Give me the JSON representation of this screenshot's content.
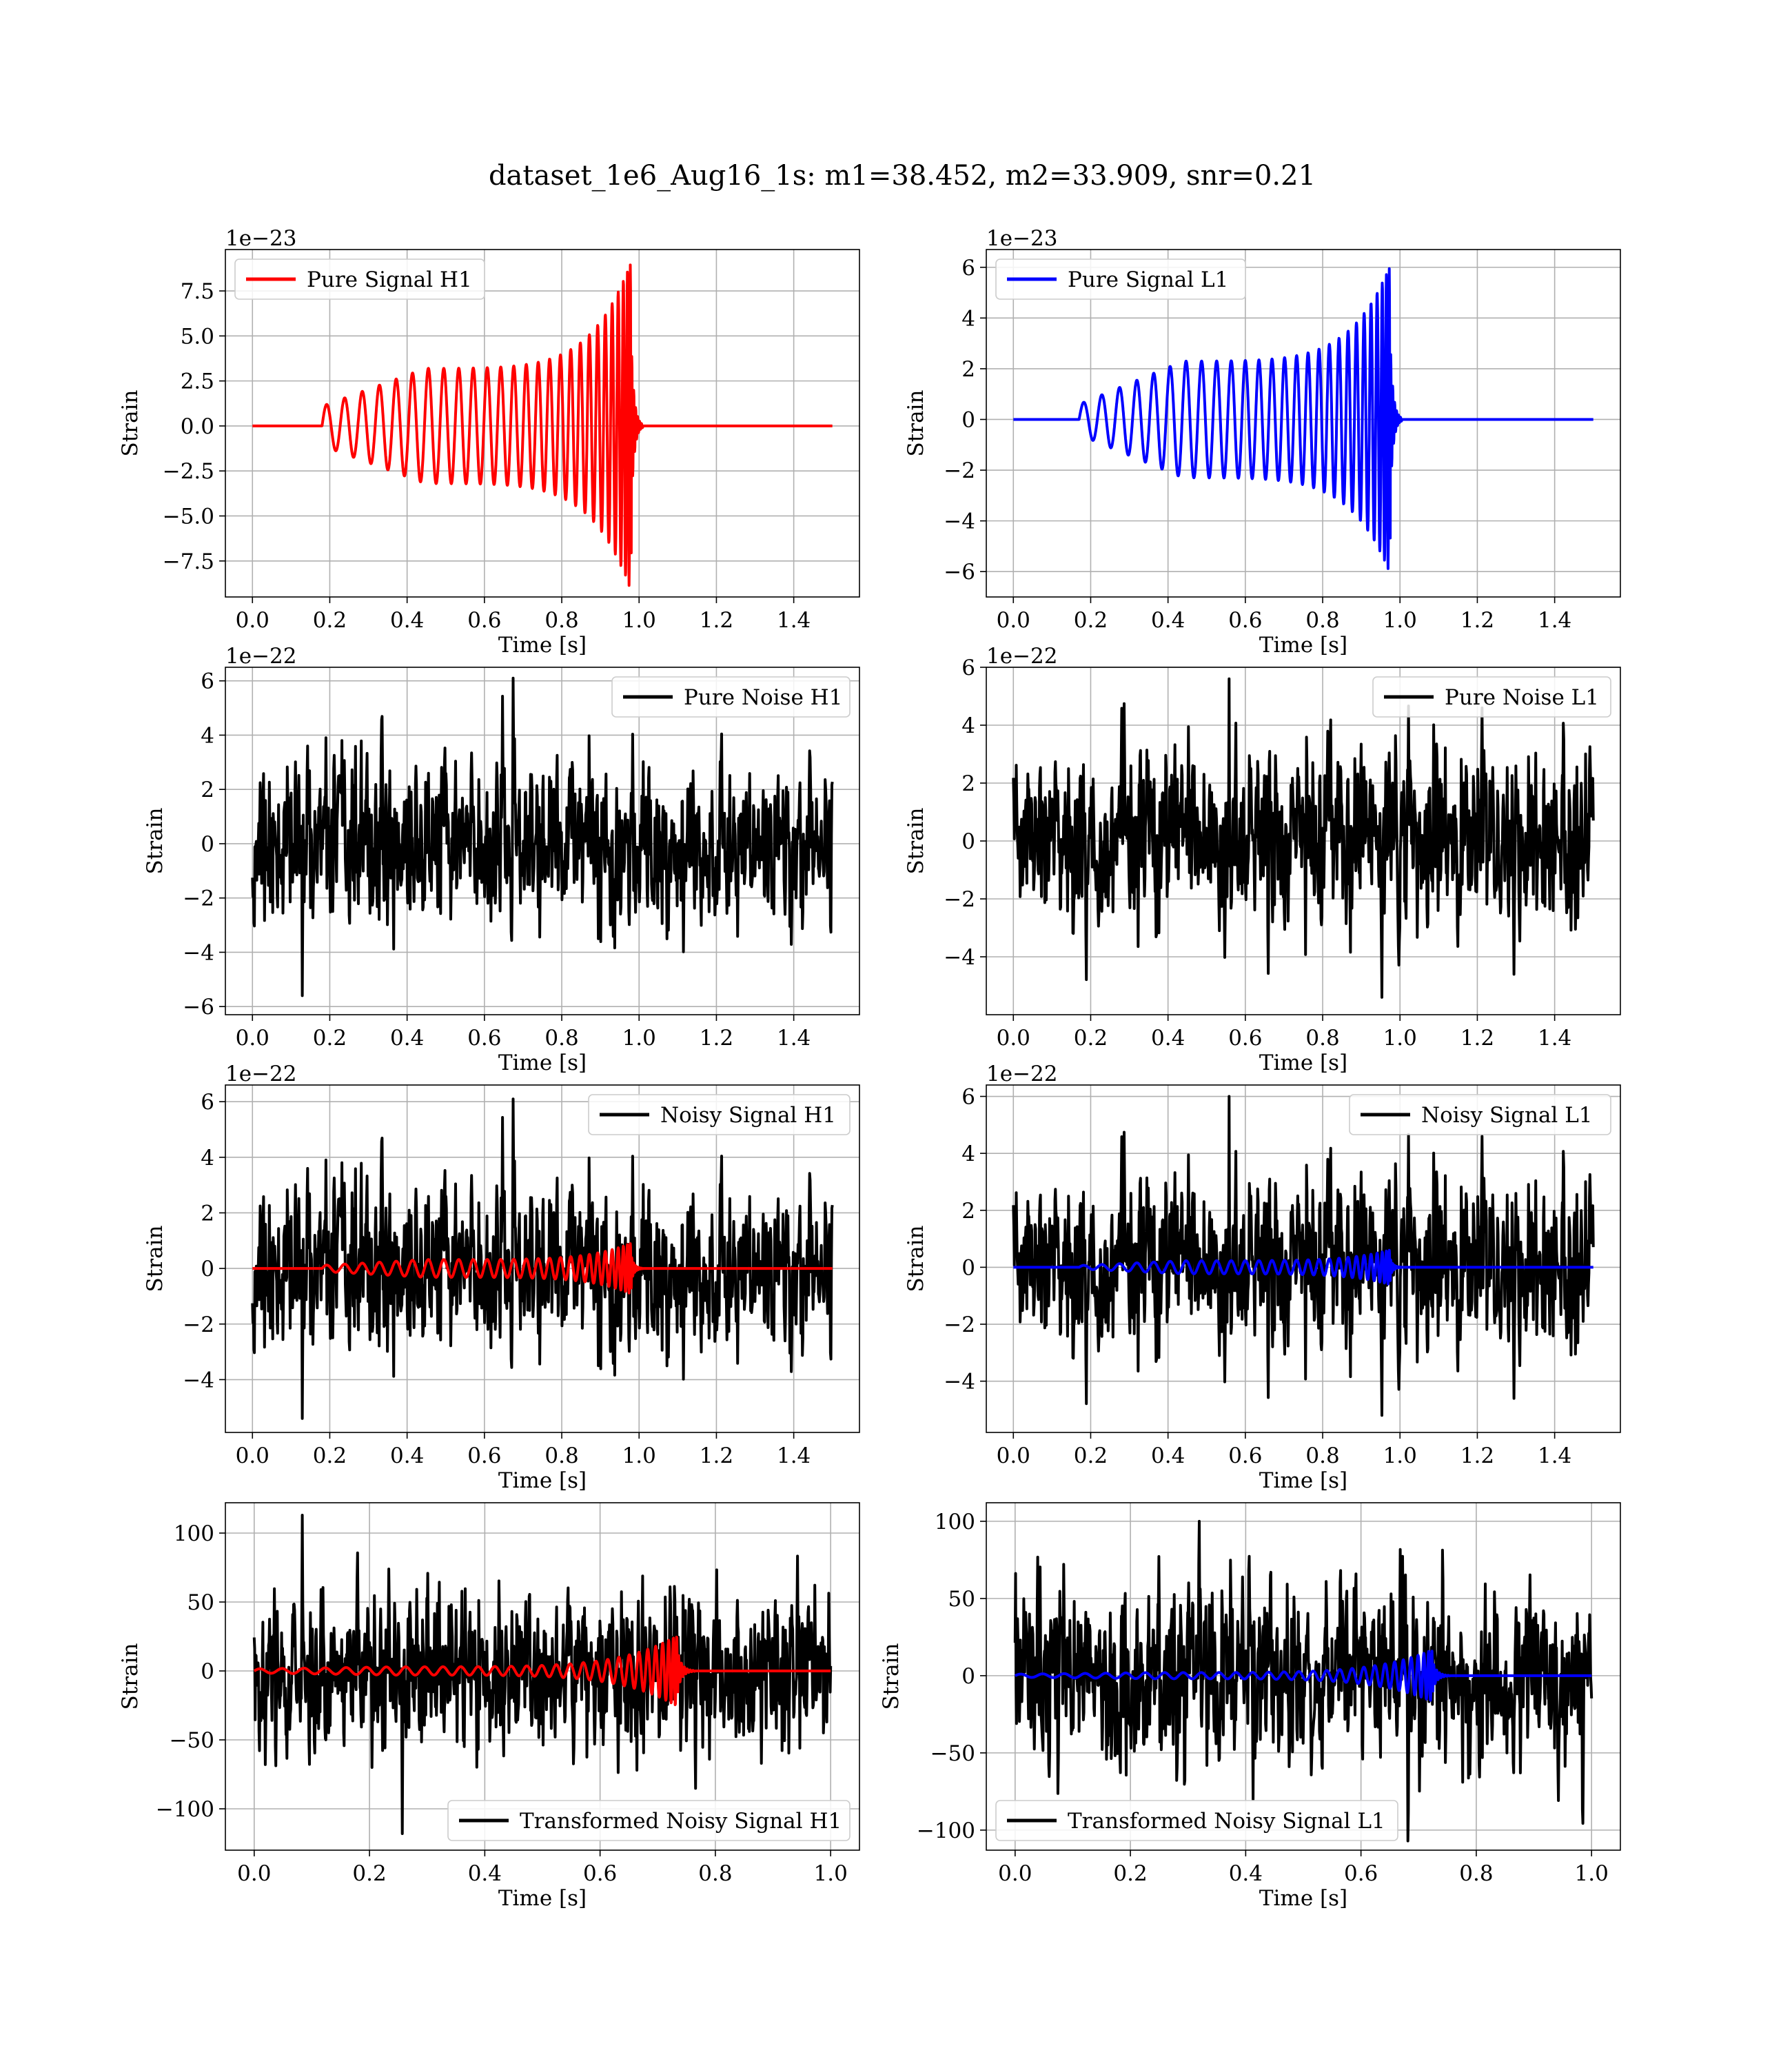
{
  "figure": {
    "suptitle": "dataset_1e6_Aug16_1s: m1=38.452, m2=33.909, snr=0.21"
  },
  "chart_data": [
    {
      "type": "line",
      "id": "h1-pure-signal",
      "xlabel": "Time [s]",
      "ylabel": "Strain",
      "offset_label": "1e−23",
      "xlim": [
        -0.07,
        1.57
      ],
      "ylim": [
        -9.5,
        9.8
      ],
      "xticks": [
        0.0,
        0.2,
        0.4,
        0.6,
        0.8,
        1.0,
        1.2,
        1.4
      ],
      "yticks": [
        -7.5,
        -5.0,
        -2.5,
        0.0,
        2.5,
        5.0,
        7.5
      ],
      "legend_loc": "upper-left",
      "series": [
        {
          "name": "Pure Signal H1",
          "color": "#ff0000",
          "kind": "chirp",
          "x_start": 0.0,
          "x_end": 1.5,
          "onset": 0.18,
          "merger": 0.98,
          "peak": 9.2,
          "start_amp": 1.1,
          "plateau_amp": 3.2,
          "cycles": 27
        }
      ]
    },
    {
      "type": "line",
      "id": "l1-pure-signal",
      "xlabel": "Time [s]",
      "ylabel": "Strain",
      "offset_label": "1e−23",
      "xlim": [
        -0.07,
        1.57
      ],
      "ylim": [
        -7.0,
        6.7
      ],
      "xticks": [
        0.0,
        0.2,
        0.4,
        0.6,
        0.8,
        1.0,
        1.2,
        1.4
      ],
      "yticks": [
        -6,
        -4,
        -2,
        0,
        2,
        4,
        6
      ],
      "legend_loc": "upper-left",
      "series": [
        {
          "name": "Pure Signal L1",
          "color": "#0000ff",
          "kind": "chirp",
          "x_start": 0.0,
          "x_end": 1.5,
          "onset": 0.17,
          "merger": 0.975,
          "peak": 6.1,
          "start_amp": 0.6,
          "plateau_amp": 2.3,
          "cycles": 27
        }
      ]
    },
    {
      "type": "line",
      "id": "h1-pure-noise",
      "xlabel": "Time [s]",
      "ylabel": "Strain",
      "offset_label": "1e−22",
      "xlim": [
        -0.07,
        1.57
      ],
      "ylim": [
        -6.3,
        6.5
      ],
      "xticks": [
        0.0,
        0.2,
        0.4,
        0.6,
        0.8,
        1.0,
        1.2,
        1.4
      ],
      "yticks": [
        -6,
        -4,
        -2,
        0,
        2,
        4,
        6
      ],
      "legend_loc": "upper-right",
      "series": [
        {
          "name": "Pure Noise H1",
          "color": "#000000",
          "kind": "noise",
          "x_start": 0.0,
          "x_end": 1.5,
          "sigma": 1.25,
          "min": -5.6,
          "max": 6.1,
          "seed": 11
        }
      ]
    },
    {
      "type": "line",
      "id": "l1-pure-noise",
      "xlabel": "Time [s]",
      "ylabel": "Strain",
      "offset_label": "1e−22",
      "xlim": [
        -0.07,
        1.57
      ],
      "ylim": [
        -6.0,
        6.0
      ],
      "xticks": [
        0.0,
        0.2,
        0.4,
        0.6,
        0.8,
        1.0,
        1.2,
        1.4
      ],
      "yticks": [
        -4,
        -2,
        0,
        2,
        4,
        6
      ],
      "legend_loc": "upper-right",
      "series": [
        {
          "name": "Pure Noise L1",
          "color": "#000000",
          "kind": "noise",
          "x_start": 0.0,
          "x_end": 1.5,
          "sigma": 1.25,
          "min": -5.4,
          "max": 5.6,
          "seed": 23
        }
      ]
    },
    {
      "type": "line",
      "id": "h1-noisy-signal",
      "xlabel": "Time [s]",
      "ylabel": "Strain",
      "offset_label": "1e−22",
      "xlim": [
        -0.07,
        1.57
      ],
      "ylim": [
        -5.9,
        6.6
      ],
      "xticks": [
        0.0,
        0.2,
        0.4,
        0.6,
        0.8,
        1.0,
        1.2,
        1.4
      ],
      "yticks": [
        -4,
        -2,
        0,
        2,
        4,
        6
      ],
      "legend_loc": "upper-right",
      "series": [
        {
          "name": "Noisy Signal H1",
          "color": "#000000",
          "kind": "noise",
          "x_start": 0.0,
          "x_end": 1.5,
          "sigma": 1.25,
          "min": -5.4,
          "max": 6.1,
          "seed": 11
        },
        {
          "color": "#ff0000",
          "kind": "chirp",
          "x_start": 0.0,
          "x_end": 1.5,
          "onset": 0.18,
          "merger": 0.98,
          "peak": 0.92,
          "start_amp": 0.11,
          "plateau_amp": 0.32,
          "cycles": 27
        }
      ]
    },
    {
      "type": "line",
      "id": "l1-noisy-signal",
      "xlabel": "Time [s]",
      "ylabel": "Strain",
      "offset_label": "1e−22",
      "xlim": [
        -0.07,
        1.57
      ],
      "ylim": [
        -5.8,
        6.4
      ],
      "xticks": [
        0.0,
        0.2,
        0.4,
        0.6,
        0.8,
        1.0,
        1.2,
        1.4
      ],
      "yticks": [
        -4,
        -2,
        0,
        2,
        4,
        6
      ],
      "legend_loc": "upper-right",
      "series": [
        {
          "name": "Noisy Signal L1",
          "color": "#000000",
          "kind": "noise",
          "x_start": 0.0,
          "x_end": 1.5,
          "sigma": 1.25,
          "min": -5.2,
          "max": 6.0,
          "seed": 23
        },
        {
          "color": "#0000ff",
          "kind": "chirp",
          "x_start": 0.0,
          "x_end": 1.5,
          "onset": 0.17,
          "merger": 0.975,
          "peak": 0.61,
          "start_amp": 0.06,
          "plateau_amp": 0.23,
          "cycles": 27
        }
      ]
    },
    {
      "type": "line",
      "id": "h1-transformed-noisy-signal",
      "xlabel": "Time [s]",
      "ylabel": "Strain",
      "offset_label": "",
      "xlim": [
        -0.05,
        1.05
      ],
      "ylim": [
        -130,
        122
      ],
      "xticks": [
        0.0,
        0.2,
        0.4,
        0.6,
        0.8,
        1.0
      ],
      "yticks": [
        -100,
        -50,
        0,
        50,
        100
      ],
      "legend_loc": "lower-right",
      "series": [
        {
          "name": "Transformed Noisy Signal H1",
          "color": "#000000",
          "kind": "noise",
          "x_start": 0.0,
          "x_end": 1.0,
          "sigma": 24,
          "min": -118,
          "max": 113,
          "seed": 37
        },
        {
          "color": "#ff0000",
          "kind": "chirp",
          "x_start": 0.0,
          "x_end": 1.0,
          "onset": 0.0,
          "merger": 0.735,
          "peak": 26,
          "start_amp": 1.5,
          "plateau_amp": 3.0,
          "cycles": 30
        }
      ]
    },
    {
      "type": "line",
      "id": "l1-transformed-noisy-signal",
      "xlabel": "Time [s]",
      "ylabel": "Strain",
      "offset_label": "",
      "xlim": [
        -0.05,
        1.05
      ],
      "ylim": [
        -113,
        112
      ],
      "xticks": [
        0.0,
        0.2,
        0.4,
        0.6,
        0.8,
        1.0
      ],
      "yticks": [
        -100,
        -50,
        0,
        50,
        100
      ],
      "legend_loc": "lower-left",
      "series": [
        {
          "name": "Transformed Noisy Signal L1",
          "color": "#000000",
          "kind": "noise",
          "x_start": 0.0,
          "x_end": 1.0,
          "sigma": 24,
          "min": -107,
          "max": 100,
          "seed": 53
        },
        {
          "color": "#0000ff",
          "kind": "chirp",
          "x_start": 0.0,
          "x_end": 1.0,
          "onset": 0.0,
          "merger": 0.725,
          "peak": 17,
          "start_amp": 1.0,
          "plateau_amp": 2.0,
          "cycles": 30
        }
      ]
    }
  ]
}
